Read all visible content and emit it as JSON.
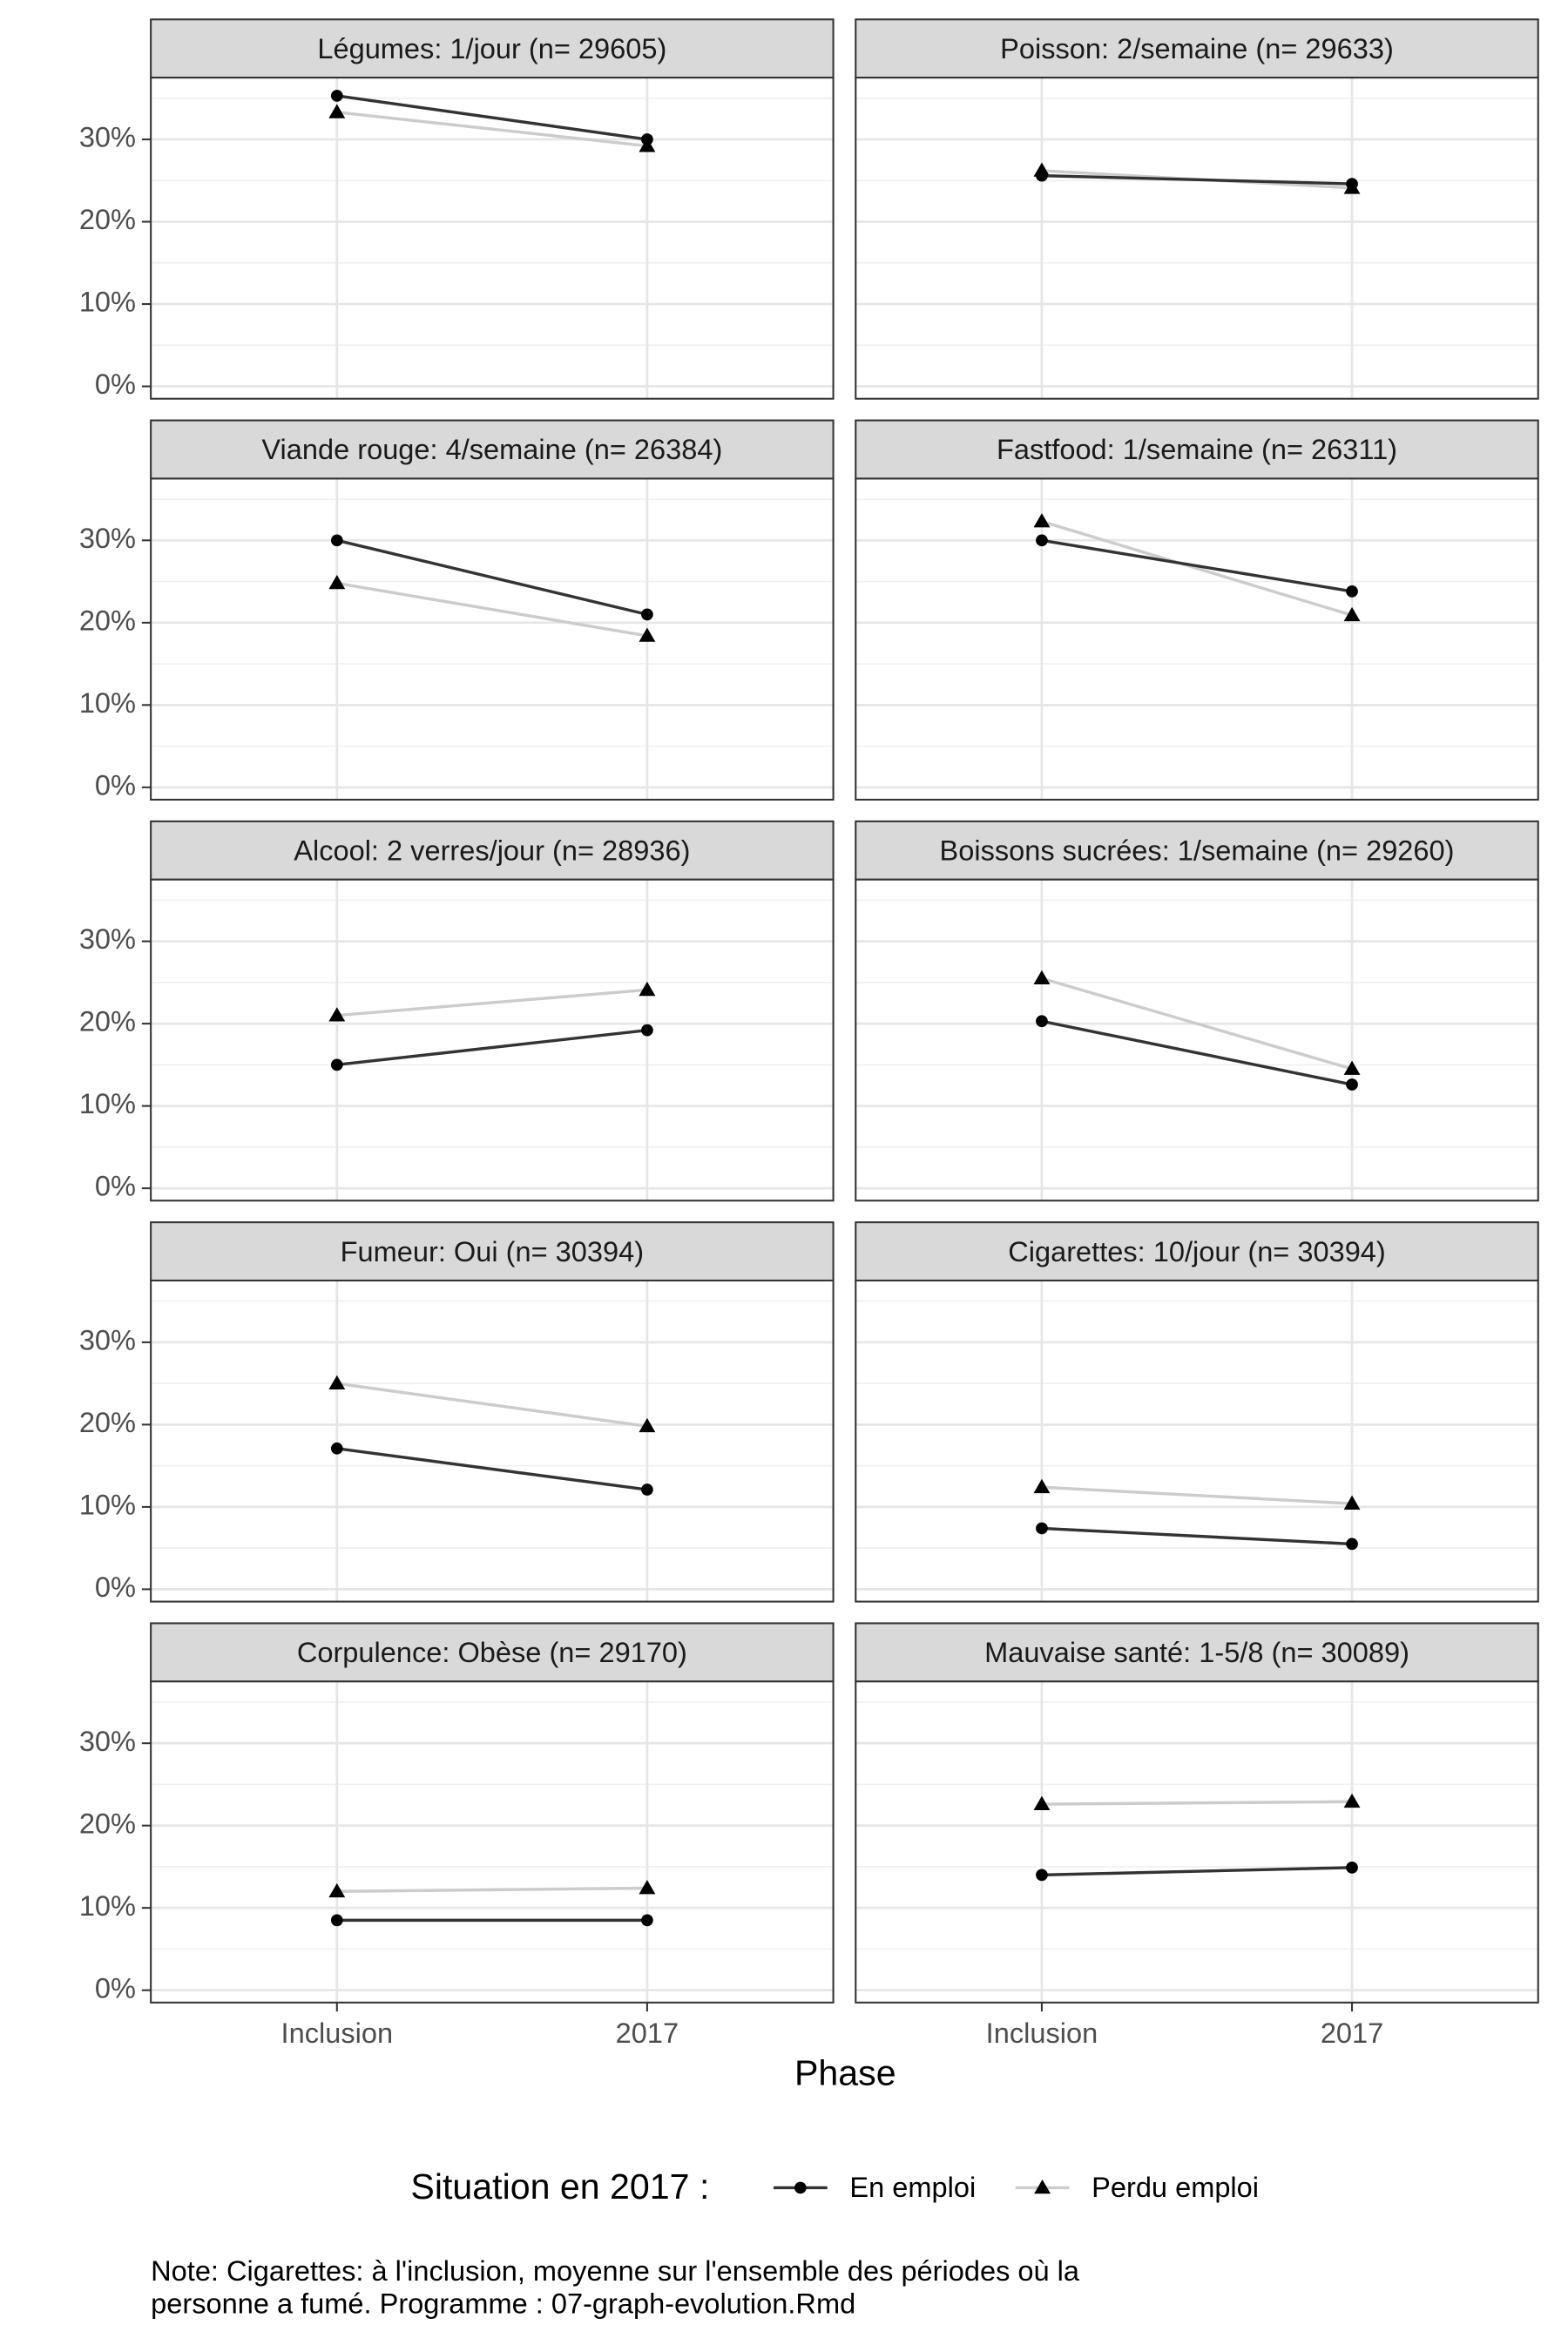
{
  "chart_data": [
    {
      "type": "line",
      "title": "Légumes: 1/jour (n= 29605)",
      "categories": [
        "Inclusion",
        "2017"
      ],
      "series": [
        {
          "name": "En emploi",
          "color": "#333333",
          "marker": "circle",
          "values": [
            35.3,
            30.0
          ]
        },
        {
          "name": "Perdu emploi",
          "color": "#cccccc",
          "marker": "triangle",
          "values": [
            33.3,
            29.2
          ]
        }
      ],
      "ylim": [
        -1.5,
        37.5
      ],
      "yticks": [
        {
          "value": 0,
          "label": "0%"
        },
        {
          "value": 10,
          "label": "10%"
        },
        {
          "value": 20,
          "label": "20%"
        },
        {
          "value": 30,
          "label": "30%"
        }
      ],
      "grid": true
    },
    {
      "type": "line",
      "title": "Poisson: 2/semaine (n= 29633)",
      "categories": [
        "Inclusion",
        "2017"
      ],
      "series": [
        {
          "name": "En emploi",
          "color": "#333333",
          "marker": "circle",
          "values": [
            25.6,
            24.6
          ]
        },
        {
          "name": "Perdu emploi",
          "color": "#cccccc",
          "marker": "triangle",
          "values": [
            26.2,
            24.1
          ]
        }
      ],
      "ylim": [
        -1.5,
        37.5
      ],
      "yticks": [
        {
          "value": 0,
          "label": "0%"
        },
        {
          "value": 10,
          "label": "10%"
        },
        {
          "value": 20,
          "label": "20%"
        },
        {
          "value": 30,
          "label": "30%"
        }
      ],
      "grid": true
    },
    {
      "type": "line",
      "title": "Viande rouge: 4/semaine (n= 26384)",
      "categories": [
        "Inclusion",
        "2017"
      ],
      "series": [
        {
          "name": "En emploi",
          "color": "#333333",
          "marker": "circle",
          "values": [
            30.0,
            21.0
          ]
        },
        {
          "name": "Perdu emploi",
          "color": "#cccccc",
          "marker": "triangle",
          "values": [
            24.8,
            18.4
          ]
        }
      ],
      "ylim": [
        -1.5,
        37.5
      ],
      "yticks": [
        {
          "value": 0,
          "label": "0%"
        },
        {
          "value": 10,
          "label": "10%"
        },
        {
          "value": 20,
          "label": "20%"
        },
        {
          "value": 30,
          "label": "30%"
        }
      ],
      "grid": true
    },
    {
      "type": "line",
      "title": "Fastfood: 1/semaine (n= 26311)",
      "categories": [
        "Inclusion",
        "2017"
      ],
      "series": [
        {
          "name": "En emploi",
          "color": "#333333",
          "marker": "circle",
          "values": [
            30.0,
            23.8
          ]
        },
        {
          "name": "Perdu emploi",
          "color": "#cccccc",
          "marker": "triangle",
          "values": [
            32.3,
            20.9
          ]
        }
      ],
      "ylim": [
        -1.5,
        37.5
      ],
      "yticks": [
        {
          "value": 0,
          "label": "0%"
        },
        {
          "value": 10,
          "label": "10%"
        },
        {
          "value": 20,
          "label": "20%"
        },
        {
          "value": 30,
          "label": "30%"
        }
      ],
      "grid": true
    },
    {
      "type": "line",
      "title": "Alcool: 2 verres/jour (n= 28936)",
      "categories": [
        "Inclusion",
        "2017"
      ],
      "series": [
        {
          "name": "En emploi",
          "color": "#333333",
          "marker": "circle",
          "values": [
            15.0,
            19.2
          ]
        },
        {
          "name": "Perdu emploi",
          "color": "#cccccc",
          "marker": "triangle",
          "values": [
            21.0,
            24.1
          ]
        }
      ],
      "ylim": [
        -1.5,
        37.5
      ],
      "yticks": [
        {
          "value": 0,
          "label": "0%"
        },
        {
          "value": 10,
          "label": "10%"
        },
        {
          "value": 20,
          "label": "20%"
        },
        {
          "value": 30,
          "label": "30%"
        }
      ],
      "grid": true
    },
    {
      "type": "line",
      "title": "Boissons sucrées: 1/semaine (n= 29260)",
      "categories": [
        "Inclusion",
        "2017"
      ],
      "series": [
        {
          "name": "En emploi",
          "color": "#333333",
          "marker": "circle",
          "values": [
            20.3,
            12.6
          ]
        },
        {
          "name": "Perdu emploi",
          "color": "#cccccc",
          "marker": "triangle",
          "values": [
            25.5,
            14.5
          ]
        }
      ],
      "ylim": [
        -1.5,
        37.5
      ],
      "yticks": [
        {
          "value": 0,
          "label": "0%"
        },
        {
          "value": 10,
          "label": "10%"
        },
        {
          "value": 20,
          "label": "20%"
        },
        {
          "value": 30,
          "label": "30%"
        }
      ],
      "grid": true
    },
    {
      "type": "line",
      "title": "Fumeur: Oui (n= 30394)",
      "categories": [
        "Inclusion",
        "2017"
      ],
      "series": [
        {
          "name": "En emploi",
          "color": "#333333",
          "marker": "circle",
          "values": [
            17.1,
            12.1
          ]
        },
        {
          "name": "Perdu emploi",
          "color": "#cccccc",
          "marker": "triangle",
          "values": [
            25.0,
            19.8
          ]
        }
      ],
      "ylim": [
        -1.5,
        37.5
      ],
      "yticks": [
        {
          "value": 0,
          "label": "0%"
        },
        {
          "value": 10,
          "label": "10%"
        },
        {
          "value": 20,
          "label": "20%"
        },
        {
          "value": 30,
          "label": "30%"
        }
      ],
      "grid": true
    },
    {
      "type": "line",
      "title": "Cigarettes: 10/jour (n= 30394)",
      "categories": [
        "Inclusion",
        "2017"
      ],
      "series": [
        {
          "name": "En emploi",
          "color": "#333333",
          "marker": "circle",
          "values": [
            7.4,
            5.5
          ]
        },
        {
          "name": "Perdu emploi",
          "color": "#cccccc",
          "marker": "triangle",
          "values": [
            12.4,
            10.4
          ]
        }
      ],
      "ylim": [
        -1.5,
        37.5
      ],
      "yticks": [
        {
          "value": 0,
          "label": "0%"
        },
        {
          "value": 10,
          "label": "10%"
        },
        {
          "value": 20,
          "label": "20%"
        },
        {
          "value": 30,
          "label": "30%"
        }
      ],
      "grid": true
    },
    {
      "type": "line",
      "title": "Corpulence: Obèse (n= 29170)",
      "categories": [
        "Inclusion",
        "2017"
      ],
      "series": [
        {
          "name": "En emploi",
          "color": "#333333",
          "marker": "circle",
          "values": [
            8.5,
            8.5
          ]
        },
        {
          "name": "Perdu emploi",
          "color": "#cccccc",
          "marker": "triangle",
          "values": [
            12.0,
            12.4
          ]
        }
      ],
      "ylim": [
        -1.5,
        37.5
      ],
      "yticks": [
        {
          "value": 0,
          "label": "0%"
        },
        {
          "value": 10,
          "label": "10%"
        },
        {
          "value": 20,
          "label": "20%"
        },
        {
          "value": 30,
          "label": "30%"
        }
      ],
      "grid": true
    },
    {
      "type": "line",
      "title": "Mauvaise santé: 1-5/8 (n= 30089)",
      "categories": [
        "Inclusion",
        "2017"
      ],
      "series": [
        {
          "name": "En emploi",
          "color": "#333333",
          "marker": "circle",
          "values": [
            14.0,
            14.9
          ]
        },
        {
          "name": "Perdu emploi",
          "color": "#cccccc",
          "marker": "triangle",
          "values": [
            22.6,
            22.9
          ]
        }
      ],
      "ylim": [
        -1.5,
        37.5
      ],
      "yticks": [
        {
          "value": 0,
          "label": "0%"
        },
        {
          "value": 10,
          "label": "10%"
        },
        {
          "value": 20,
          "label": "20%"
        },
        {
          "value": 30,
          "label": "30%"
        }
      ],
      "grid": true
    }
  ],
  "x_label": "Phase",
  "legend_title": "Situation en 2017 :",
  "note": [
    "Note: Cigarettes: à l'inclusion, moyenne sur l'ensemble des périodes où la",
    "personne a fumé. Programme : 07-graph-evolution.Rmd"
  ]
}
